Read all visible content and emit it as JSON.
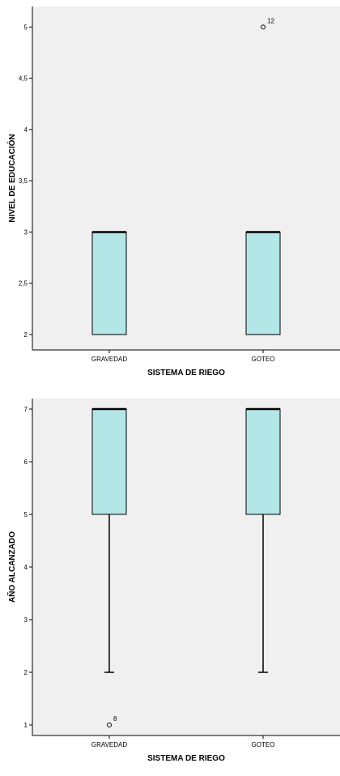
{
  "chart_data": [
    {
      "type": "box",
      "title": "",
      "xlabel": "SISTEMA DE RIEGO",
      "ylabel": "NIVEL DE EDUCACIÓN",
      "categories": [
        "GRAVEDAD",
        "GOTEO"
      ],
      "ylim": [
        1.85,
        5.2
      ],
      "yticks": [
        2,
        2.5,
        3,
        3.5,
        4,
        4.5,
        5
      ],
      "ytick_labels": [
        "2",
        "2,5",
        "3",
        "3,5",
        "4",
        "4,5",
        "5"
      ],
      "boxes": [
        {
          "category": "GRAVEDAD",
          "min": 2,
          "q1": 2,
          "median": 3,
          "q3": 3,
          "max": 3,
          "outliers": []
        },
        {
          "category": "GOTEO",
          "min": 2,
          "q1": 2,
          "median": 3,
          "q3": 3,
          "max": 3,
          "outliers": [
            {
              "value": 5,
              "label": "12"
            }
          ]
        }
      ],
      "box_color": "#b3e6e6",
      "background": "#f0f0f0",
      "grid": false
    },
    {
      "type": "box",
      "title": "",
      "xlabel": "SISTEMA DE RIEGO",
      "ylabel": "AÑO ALCANZADO",
      "categories": [
        "GRAVEDAD",
        "GOTEO"
      ],
      "ylim": [
        0.8,
        7.2
      ],
      "yticks": [
        1,
        2,
        3,
        4,
        5,
        6,
        7
      ],
      "ytick_labels": [
        "1",
        "2",
        "3",
        "4",
        "5",
        "6",
        "7"
      ],
      "boxes": [
        {
          "category": "GRAVEDAD",
          "min": 2,
          "q1": 5,
          "median": 7,
          "q3": 7,
          "max": 7,
          "outliers": [
            {
              "value": 1,
              "label": "8"
            }
          ]
        },
        {
          "category": "GOTEO",
          "min": 2,
          "q1": 5,
          "median": 7,
          "q3": 7,
          "max": 7,
          "outliers": []
        }
      ],
      "box_color": "#b3e6e6",
      "background": "#f0f0f0",
      "grid": false
    }
  ]
}
